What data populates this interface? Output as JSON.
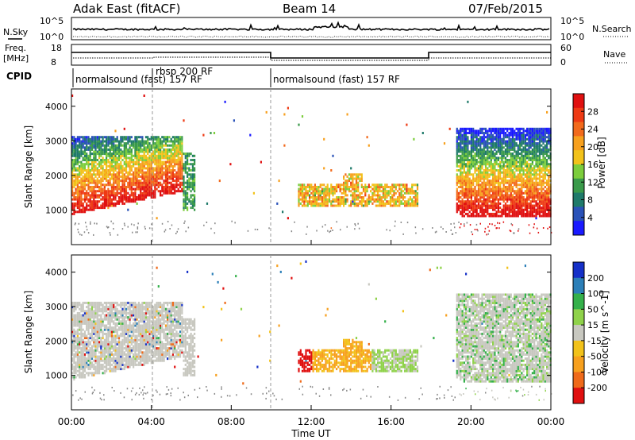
{
  "header": {
    "title": "Adak East (fitACF)",
    "beam": "Beam 14",
    "date": "07/Feb/2015"
  },
  "sky_panel": {
    "left_label": "N.Sky",
    "right_label": "N.Search",
    "y_ticks_left": [
      "10^5",
      "10^0"
    ],
    "y_ticks_right": [
      "10^5",
      "10^0"
    ]
  },
  "freq_panel": {
    "left_label_1": "Freq.",
    "left_label_2": "[MHz]",
    "right_label": "Nave",
    "y_ticks_left": [
      "18",
      "8"
    ],
    "y_ticks_right": [
      "60",
      "0"
    ]
  },
  "cpid_panel": {
    "label": "CPID",
    "segments": [
      {
        "text": "normalsound (fast) 157 RF"
      },
      {
        "text": "rbsp 200 RF"
      },
      {
        "text": "normalsound (fast) 157 RF"
      }
    ]
  },
  "chart_data": [
    {
      "type": "heatmap",
      "name": "power",
      "ylabel": "Slant Range [km]",
      "ylim": [
        0,
        4500
      ],
      "yticks": [
        "1000",
        "2000",
        "3000",
        "4000"
      ],
      "colorbar_label": "Power [dB]",
      "colorbar_ticks": [
        "4",
        "8",
        "12",
        "16",
        "20",
        "24",
        "28"
      ],
      "colors": [
        "#1a1aff",
        "#2a52b8",
        "#1f7a6a",
        "#3a9a4a",
        "#7ccd3c",
        "#f2c21a",
        "#f7a01e",
        "#f26a1c",
        "#ee3a14",
        "#e01010"
      ]
    },
    {
      "type": "heatmap",
      "name": "velocity",
      "ylabel": "Slant Range [km]",
      "ylim": [
        0,
        4500
      ],
      "yticks": [
        "1000",
        "2000",
        "3000",
        "4000"
      ],
      "colorbar_label": "Velocity [m s^-1]",
      "colorbar_ticks": [
        "200",
        "100",
        "50",
        "15",
        "-15",
        "-50",
        "-100",
        "-200"
      ],
      "colors": [
        "#1530c8",
        "#2c7fb8",
        "#34b04a",
        "#8fd24a",
        "#c8c8c0",
        "#f2c21a",
        "#f7a01e",
        "#ef6a1a",
        "#e01010"
      ],
      "xlabel": "Time UT",
      "xticks": [
        "00:00",
        "04:00",
        "08:00",
        "12:00",
        "16:00",
        "20:00",
        "00:00"
      ]
    }
  ]
}
